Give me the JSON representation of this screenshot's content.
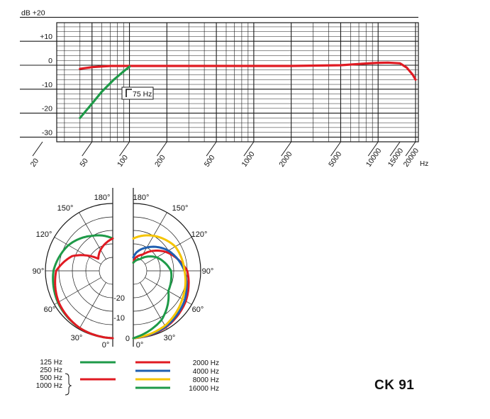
{
  "model": "CK 91",
  "colors": {
    "grid": "#1a1a1a",
    "curve_main": "#e01a22",
    "curve_lowcut": "#1e9a48",
    "freq_125": "#1e9a48",
    "freq_250_1000": "#e01a22",
    "freq_2000": "#e01a22",
    "freq_4000": "#1f5fb0",
    "freq_8000": "#f5c400",
    "freq_16000": "#1e9a48"
  },
  "chart_data": [
    {
      "type": "line",
      "title": "",
      "xlabel": "Hz",
      "ylabel": "dB",
      "xscale": "log",
      "xlim": [
        20,
        20000
      ],
      "ylim": [
        -30,
        20
      ],
      "grid": true,
      "x_tick_labels": [
        "20",
        "50",
        "100",
        "200",
        "500",
        "1000",
        "2000",
        "5000",
        "10000",
        "15000",
        "20000"
      ],
      "x_ticks": [
        20,
        50,
        100,
        200,
        500,
        1000,
        2000,
        5000,
        10000,
        15000,
        20000
      ],
      "y_tick_labels": [
        "dB  +20",
        "+10",
        "0",
        "-10",
        "-20",
        "-30"
      ],
      "y_ticks": [
        20,
        10,
        0,
        -10,
        -20,
        -30
      ],
      "annotation": "75 Hz",
      "series": [
        {
          "color_key": "curve_main",
          "x": [
            40,
            50,
            70,
            100,
            200,
            500,
            1000,
            2000,
            5000,
            8000,
            10000,
            12000,
            15000,
            17000,
            19000,
            20000
          ],
          "y": [
            -1.5,
            -0.8,
            -0.3,
            -0.3,
            -0.3,
            -0.3,
            -0.3,
            -0.3,
            0,
            0.7,
            1.0,
            1.1,
            0.8,
            -1,
            -4,
            -6
          ]
        },
        {
          "color_key": "curve_lowcut",
          "x": [
            40,
            50,
            60,
            75,
            90,
            100
          ],
          "y": [
            -22,
            -16,
            -11,
            -6,
            -2.5,
            -0.6
          ]
        }
      ]
    },
    {
      "type": "polar",
      "title": "",
      "angle_labels": [
        "0°",
        "30°",
        "60°",
        "90°",
        "120°",
        "150°",
        "180°"
      ],
      "r_labels": [
        "-20",
        "-10",
        "0"
      ],
      "rlim": [
        -25,
        0
      ],
      "legend": {
        "left_group": [
          "125 Hz",
          "250 Hz",
          "500 Hz",
          "1000 Hz"
        ],
        "right_group": [
          "2000 Hz",
          "4000 Hz",
          "8000 Hz",
          "16000 Hz"
        ]
      },
      "left_series": [
        {
          "name": "125 Hz",
          "color_key": "freq_125",
          "angles": [
            0,
            30,
            60,
            90,
            120,
            150,
            180
          ],
          "db": [
            0,
            -0.5,
            -1.5,
            -3,
            -6,
            -10,
            -13
          ]
        },
        {
          "name": "250 Hz, 500 Hz, 1000 Hz",
          "color_key": "freq_250_1000",
          "angles": [
            0,
            30,
            60,
            90,
            110,
            130,
            150,
            170,
            180
          ],
          "db": [
            0,
            -0.5,
            -1.8,
            -4,
            -9,
            -18,
            -16,
            -14,
            -13
          ]
        }
      ],
      "right_series": [
        {
          "name": "2000 Hz",
          "color_key": "freq_2000",
          "angles": [
            0,
            30,
            60,
            90,
            120,
            150,
            170,
            180
          ],
          "db": [
            0,
            -0.8,
            -2.5,
            -5,
            -11,
            -18,
            -20,
            -22
          ]
        },
        {
          "name": "4000 Hz",
          "color_key": "freq_4000",
          "angles": [
            0,
            30,
            60,
            90,
            120,
            150,
            170,
            180
          ],
          "db": [
            0,
            -1,
            -3,
            -6,
            -10,
            -15,
            -18,
            -20
          ]
        },
        {
          "name": "8000 Hz",
          "color_key": "freq_8000",
          "angles": [
            0,
            30,
            60,
            90,
            120,
            150,
            170,
            180
          ],
          "db": [
            0,
            -1.5,
            -4,
            -6,
            -7,
            -10,
            -12,
            -13
          ]
        },
        {
          "name": "16000 Hz",
          "color_key": "freq_16000",
          "angles": [
            0,
            30,
            60,
            90,
            120,
            150,
            180
          ],
          "db": [
            0,
            -4,
            -10,
            -11,
            -15,
            -20,
            -22
          ]
        }
      ]
    }
  ]
}
